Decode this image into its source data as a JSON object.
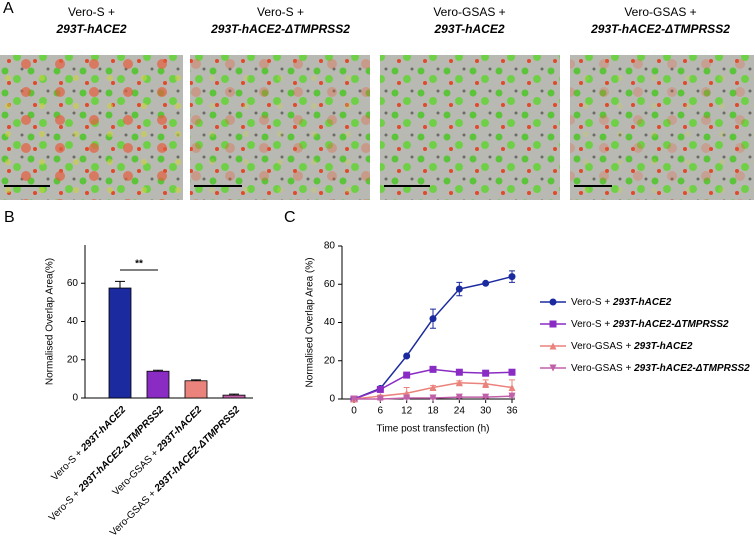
{
  "panel_a": {
    "label": "A",
    "titles": [
      "Vero-S + 293T-hACE2",
      "Vero-S + 293T-hACE2-ΔTMPRSS2",
      "Vero-GSAS + 293T-hACE2",
      "Vero-GSAS + 293T-hACE2-ΔTMPRSS2"
    ]
  },
  "chart_data": [
    {
      "type": "bar",
      "label": "B",
      "y_label": "Normalised Overlap Area(%)",
      "categories": [
        "Vero-S + 293T-hACE2",
        "Vero-S + 293T-hACE2-ΔTMPRSS2",
        "Vero-GSAS + 293T-hACE2",
        "Vero-GSAS + 293T-hACE2-ΔTMPRSS2"
      ],
      "values": [
        57.5,
        14,
        9,
        1.5
      ],
      "errors": [
        3.5,
        0.5,
        0.5,
        0.5
      ],
      "colors": [
        "#1b2a9e",
        "#8a2bc4",
        "#ea837b",
        "#c060a8"
      ],
      "ylim": [
        0,
        80
      ],
      "yticks": [
        0,
        20,
        40,
        60
      ],
      "annotation": "**"
    },
    {
      "type": "line",
      "label": "C",
      "x_label": "Time post transfection (h)",
      "y_label": "Normalised Overlap Area (%)",
      "x": [
        0,
        6,
        12,
        18,
        24,
        30,
        36
      ],
      "xlim": [
        0,
        36
      ],
      "xticks": [
        0,
        6,
        12,
        18,
        24,
        30,
        36
      ],
      "ylim": [
        0,
        80
      ],
      "yticks": [
        0,
        20,
        40,
        60,
        80
      ],
      "series": [
        {
          "name": "Vero-S + 293T-hACE2",
          "color": "#1b2a9e",
          "marker": "circle",
          "values": [
            0,
            5.5,
            22.5,
            42,
            57.5,
            60.5,
            64
          ],
          "errors": [
            0,
            1,
            0.5,
            5,
            3.5,
            0.5,
            3
          ]
        },
        {
          "name": "Vero-S + 293T-hACE2-ΔTMPRSS2",
          "color": "#8a2bc4",
          "marker": "square",
          "values": [
            0,
            5,
            12.5,
            15.5,
            14,
            13.5,
            14
          ],
          "errors": [
            0,
            1,
            1,
            1,
            1,
            1,
            1
          ]
        },
        {
          "name": "Vero-GSAS + 293T-hACE2",
          "color": "#ea837b",
          "marker": "triangle",
          "values": [
            0,
            1.5,
            3,
            6,
            8.5,
            8,
            6
          ],
          "errors": [
            0,
            0.5,
            3,
            1,
            1,
            2,
            4
          ]
        },
        {
          "name": "Vero-GSAS + 293T-hACE2-ΔTMPRSS2",
          "color": "#c060a8",
          "marker": "triangle-down",
          "values": [
            0,
            0,
            0.5,
            0.5,
            1,
            1,
            1.5
          ],
          "errors": [
            0,
            0.5,
            0.5,
            0.5,
            0.5,
            0.5,
            0.5
          ]
        }
      ]
    }
  ]
}
